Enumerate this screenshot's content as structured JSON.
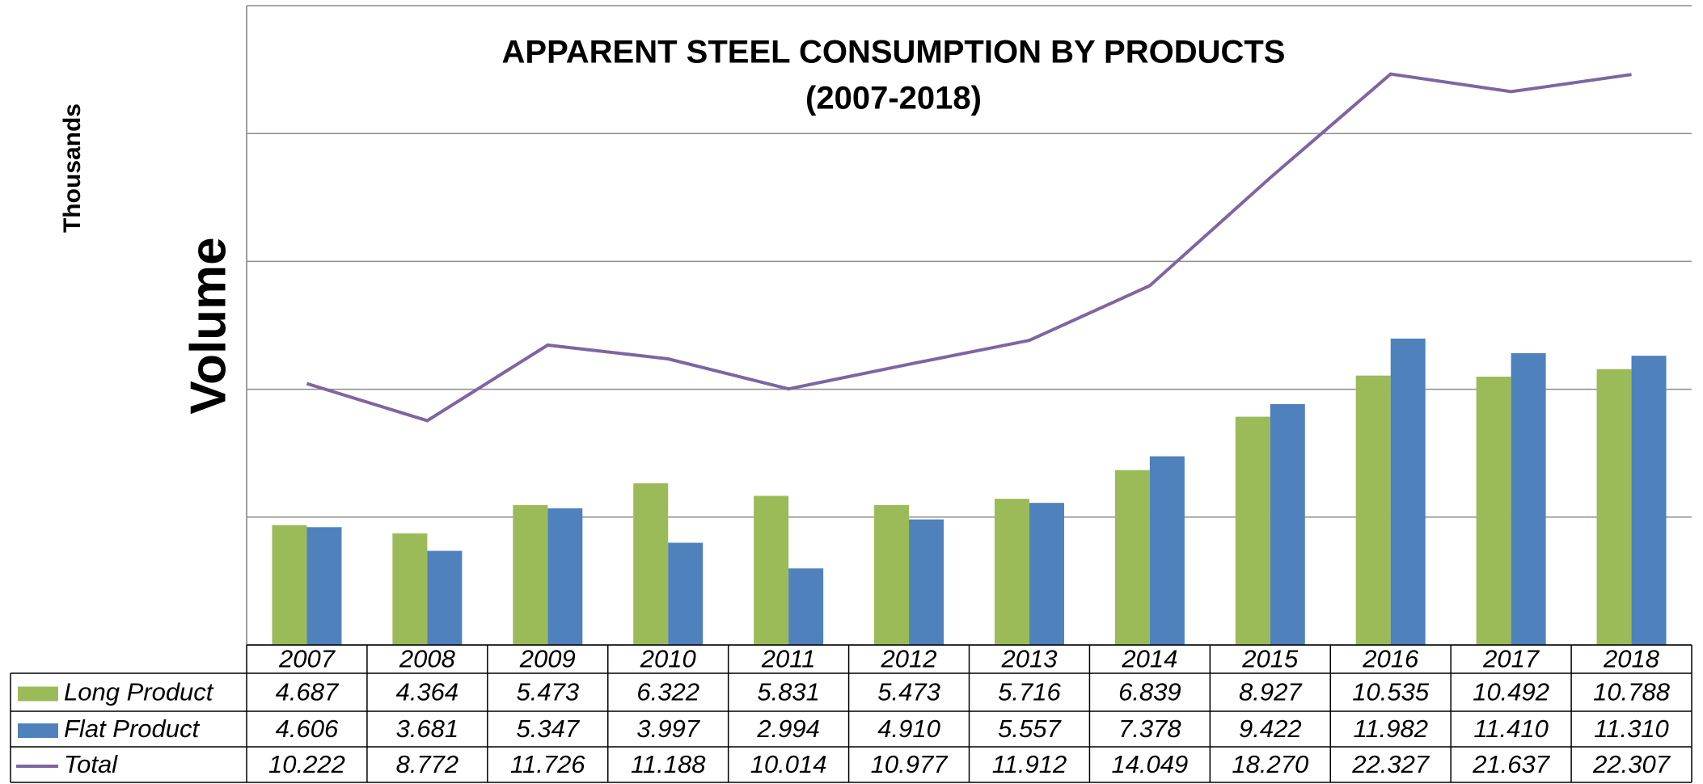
{
  "chart_data": {
    "type": "bar",
    "title": "APPARENT STEEL CONSUMPTION BY PRODUCTS",
    "subtitle": "(2007-2018)",
    "y_label": "Volume",
    "y_units": "Thousands",
    "categories": [
      "2007",
      "2008",
      "2009",
      "2010",
      "2011",
      "2012",
      "2013",
      "2014",
      "2015",
      "2016",
      "2017",
      "2018"
    ],
    "series": [
      {
        "name": "Long Product",
        "color": "#9bbb59",
        "type": "bar",
        "values": [
          4.687,
          4.364,
          5.473,
          6.322,
          5.831,
          5.473,
          5.716,
          6.839,
          8.927,
          10.535,
          10.492,
          10.788
        ],
        "value_labels": [
          "4.687",
          "4.364",
          "5.473",
          "6.322",
          "5.831",
          "5.473",
          "5.716",
          "6.839",
          "8.927",
          "10.535",
          "10.492",
          "10.788"
        ]
      },
      {
        "name": "Flat Product",
        "color": "#4f81bd",
        "type": "bar",
        "values": [
          4.606,
          3.681,
          5.347,
          3.997,
          2.994,
          4.91,
          5.557,
          7.378,
          9.422,
          11.982,
          11.41,
          11.31
        ],
        "value_labels": [
          "4.606",
          "3.681",
          "5.347",
          "3.997",
          "2.994",
          "4.910",
          "5.557",
          "7.378",
          "9.422",
          "11.982",
          "11.410",
          "11.310"
        ]
      },
      {
        "name": "Total",
        "color": "#8064a2",
        "type": "line",
        "values": [
          10.222,
          8.772,
          11.726,
          11.188,
          10.014,
          10.977,
          11.912,
          14.049,
          18.27,
          22.327,
          21.637,
          22.307
        ],
        "value_labels": [
          "10.222",
          "8.772",
          "11.726",
          "11.188",
          "10.014",
          "10.977",
          "11.912",
          "14.049",
          "18.270",
          "22.327",
          "21.637",
          "22.307"
        ]
      }
    ],
    "ylim": [
      0,
      25
    ],
    "yticks": [
      0,
      5,
      10,
      15,
      20,
      25
    ],
    "grid": true
  }
}
